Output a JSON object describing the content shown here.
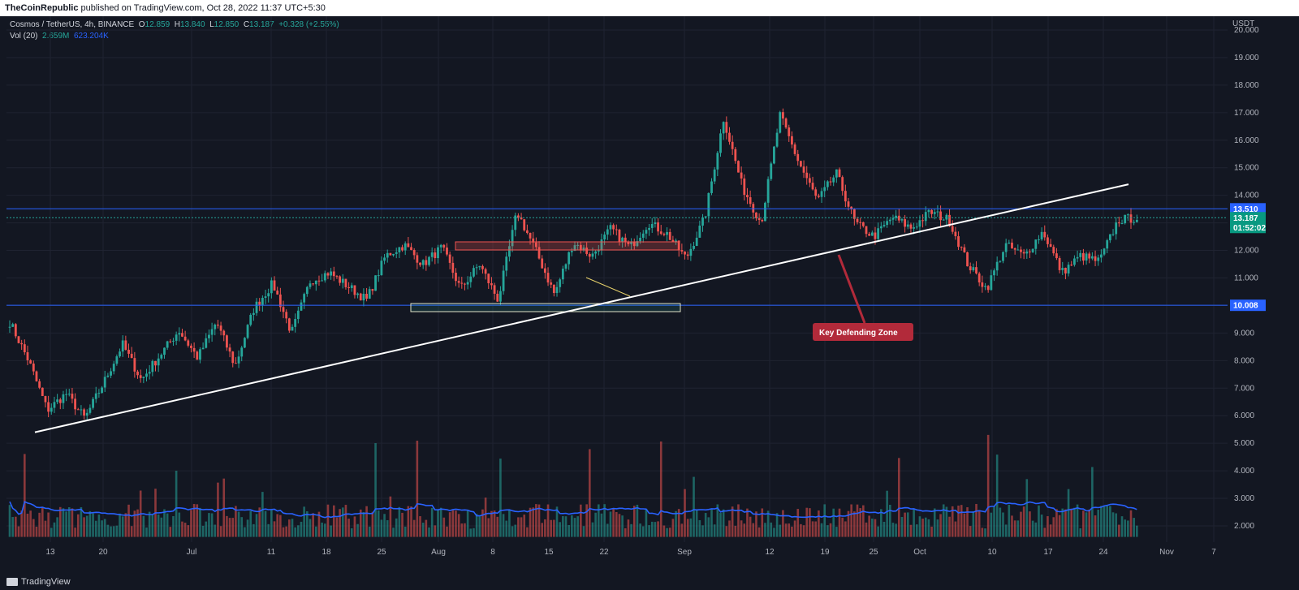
{
  "header": {
    "publisher": "TheCoinRepublic",
    "published_text": "published on TradingView.com, Oct 28, 2022 11:37 UTC+5:30"
  },
  "legend": {
    "symbol": "Cosmos / TetherUS, 4h, BINANCE",
    "open_label": "O",
    "open": "12.859",
    "high_label": "H",
    "high": "13.840",
    "low_label": "L",
    "low": "12.850",
    "close_label": "C",
    "close": "13.187",
    "change": "+0.328 (+2.55%)",
    "vol_label": "Vol (20)",
    "vol_value": "2.659M",
    "vol_ma": "623.204K"
  },
  "footer": {
    "brand": "TradingView"
  },
  "colors": {
    "background": "#131722",
    "up": "#26a69a",
    "down": "#ef5350",
    "level_line": "#2962ff",
    "volume_ma": "#2962ff",
    "annotation": "#b22a3a"
  },
  "chart_data": {
    "type": "candlestick",
    "currency": "USDT",
    "y_ticks": [
      "20.000",
      "19.000",
      "18.000",
      "17.000",
      "16.000",
      "15.000",
      "14.000",
      "13.000",
      "12.000",
      "11.000",
      "10.000",
      "9.000",
      "8.000",
      "7.000",
      "6.000",
      "5.000",
      "4.000",
      "3.000",
      "2.000"
    ],
    "x_ticks": [
      "13",
      "20",
      "Jul",
      "11",
      "18",
      "25",
      "Aug",
      "8",
      "15",
      "22",
      "Sep",
      "12",
      "19",
      "25",
      "Oct",
      "10",
      "17",
      "24",
      "Nov",
      "7"
    ],
    "price_tags": {
      "resistance": "13.510",
      "last": "13.187",
      "countdown": "01:52:02",
      "support": "10.008"
    },
    "levels": {
      "resistance": 13.51,
      "support": 10.008
    },
    "price_path": [
      9.4,
      8.0,
      6.2,
      6.8,
      5.9,
      7.2,
      8.6,
      7.3,
      8.2,
      9.1,
      8.1,
      9.4,
      7.8,
      9.9,
      10.8,
      9.0,
      10.9,
      11.2,
      10.7,
      10.2,
      11.8,
      12.2,
      11.5,
      12.1,
      10.6,
      11.5,
      10.2,
      13.4,
      12.0,
      10.4,
      12.3,
      11.8,
      12.8,
      12.1,
      13.0,
      12.6,
      11.7,
      13.2,
      16.8,
      14.3,
      13.0,
      16.9,
      15.2,
      13.8,
      14.8,
      13.0,
      12.5,
      13.2,
      12.8,
      13.4,
      13.1,
      11.5,
      10.6,
      12.2,
      11.8,
      12.7,
      11.2,
      11.8,
      11.6,
      13.1,
      13.19
    ],
    "annotation": "Key Defending Zone",
    "trendline": {
      "start_price": 5.4,
      "end_price": 14.4
    },
    "volume_note": "volume bars with 20-period moving average"
  }
}
